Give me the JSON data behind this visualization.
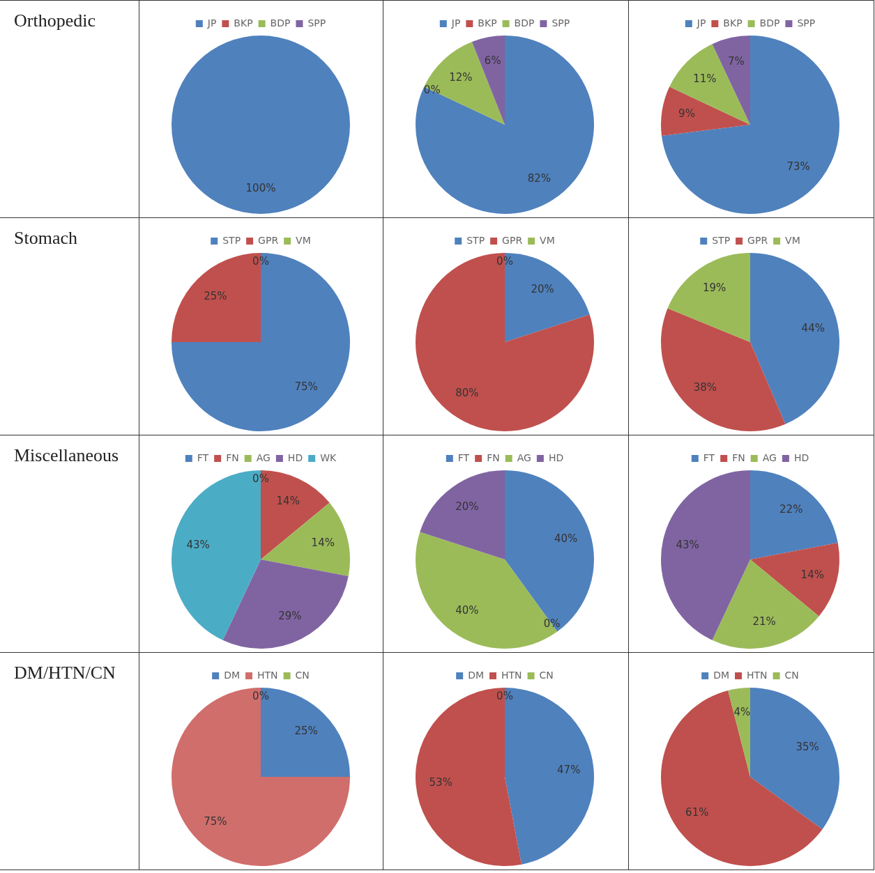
{
  "chart_data": [
    {
      "type": "pie",
      "title": "Orthopedic",
      "categories": [
        "JP",
        "BKP",
        "BDP",
        "SPP"
      ],
      "values": [
        100,
        0,
        0,
        0
      ],
      "colors": [
        "#4f81bd",
        "#c0504d",
        "#9bbb59",
        "#8064a2"
      ],
      "value_labels": [
        "100%",
        null,
        null,
        null
      ],
      "legend": "top"
    },
    {
      "type": "pie",
      "categories": [
        "JP",
        "BKP",
        "BDP",
        "SPP"
      ],
      "values": [
        82,
        0,
        12,
        6
      ],
      "colors": [
        "#4f81bd",
        "#c0504d",
        "#9bbb59",
        "#8064a2"
      ],
      "value_labels": [
        "82%",
        "0%",
        "12%",
        "6%"
      ],
      "legend": "top"
    },
    {
      "type": "pie",
      "categories": [
        "JP",
        "BKP",
        "BDP",
        "SPP"
      ],
      "values": [
        73,
        9,
        11,
        7
      ],
      "colors": [
        "#4f81bd",
        "#c0504d",
        "#9bbb59",
        "#8064a2"
      ],
      "value_labels": [
        "73%",
        "9%",
        "11%",
        "7%"
      ],
      "legend": "top"
    },
    {
      "type": "pie",
      "title": "Stomach",
      "categories": [
        "STP",
        "GPR",
        "VM"
      ],
      "values": [
        75,
        25,
        0
      ],
      "colors": [
        "#4f81bd",
        "#c0504d",
        "#9bbb59"
      ],
      "value_labels": [
        "75%",
        "25%",
        "0%"
      ],
      "legend": "top"
    },
    {
      "type": "pie",
      "categories": [
        "STP",
        "GPR",
        "VM"
      ],
      "values": [
        20,
        80,
        0
      ],
      "colors": [
        "#4f81bd",
        "#c0504d",
        "#9bbb59"
      ],
      "value_labels": [
        "20%",
        "80%",
        "0%"
      ],
      "legend": "top"
    },
    {
      "type": "pie",
      "categories": [
        "STP",
        "GPR",
        "VM"
      ],
      "values": [
        44,
        38,
        19
      ],
      "colors": [
        "#4f81bd",
        "#c0504d",
        "#9bbb59"
      ],
      "value_labels": [
        "44%",
        "38%",
        "19%"
      ],
      "legend": "top"
    },
    {
      "type": "pie",
      "title": "Miscellaneous",
      "categories": [
        "FT",
        "FN",
        "AG",
        "HD",
        "WK"
      ],
      "values": [
        0,
        14,
        14,
        29,
        43
      ],
      "colors": [
        "#4f81bd",
        "#c0504d",
        "#9bbb59",
        "#8064a2",
        "#4bacc6"
      ],
      "value_labels": [
        "0%",
        "14%",
        "14%",
        "29%",
        "43%"
      ],
      "legend": "top"
    },
    {
      "type": "pie",
      "categories": [
        "FT",
        "FN",
        "AG",
        "HD"
      ],
      "values": [
        40,
        0,
        40,
        20
      ],
      "colors": [
        "#4f81bd",
        "#c0504d",
        "#9bbb59",
        "#8064a2"
      ],
      "value_labels": [
        "40%",
        "0%",
        "40%",
        "20%"
      ],
      "legend": "top"
    },
    {
      "type": "pie",
      "categories": [
        "FT",
        "FN",
        "AG",
        "HD"
      ],
      "values": [
        22,
        14,
        21,
        43
      ],
      "colors": [
        "#4f81bd",
        "#c0504d",
        "#9bbb59",
        "#8064a2"
      ],
      "value_labels": [
        "22%",
        "14%",
        "21%",
        "43%"
      ],
      "legend": "top"
    },
    {
      "type": "pie",
      "title": "DM/HTN/CN",
      "categories": [
        "DM",
        "HTN",
        "CN"
      ],
      "values": [
        25,
        75,
        0
      ],
      "colors": [
        "#4f81bd",
        "#d06e6c",
        "#9bbb59"
      ],
      "value_labels": [
        "25%",
        "75%",
        "0%"
      ],
      "legend": "top"
    },
    {
      "type": "pie",
      "categories": [
        "DM",
        "HTN",
        "CN"
      ],
      "values": [
        47,
        53,
        0
      ],
      "colors": [
        "#4f81bd",
        "#c0504d",
        "#9bbb59"
      ],
      "value_labels": [
        "47%",
        "53%",
        "0%"
      ],
      "legend": "top"
    },
    {
      "type": "pie",
      "categories": [
        "DM",
        "HTN",
        "CN"
      ],
      "values": [
        35,
        61,
        4
      ],
      "colors": [
        "#4f81bd",
        "#c0504d",
        "#9bbb59"
      ],
      "value_labels": [
        "35%",
        "61%",
        "4%"
      ],
      "legend": "top"
    }
  ]
}
